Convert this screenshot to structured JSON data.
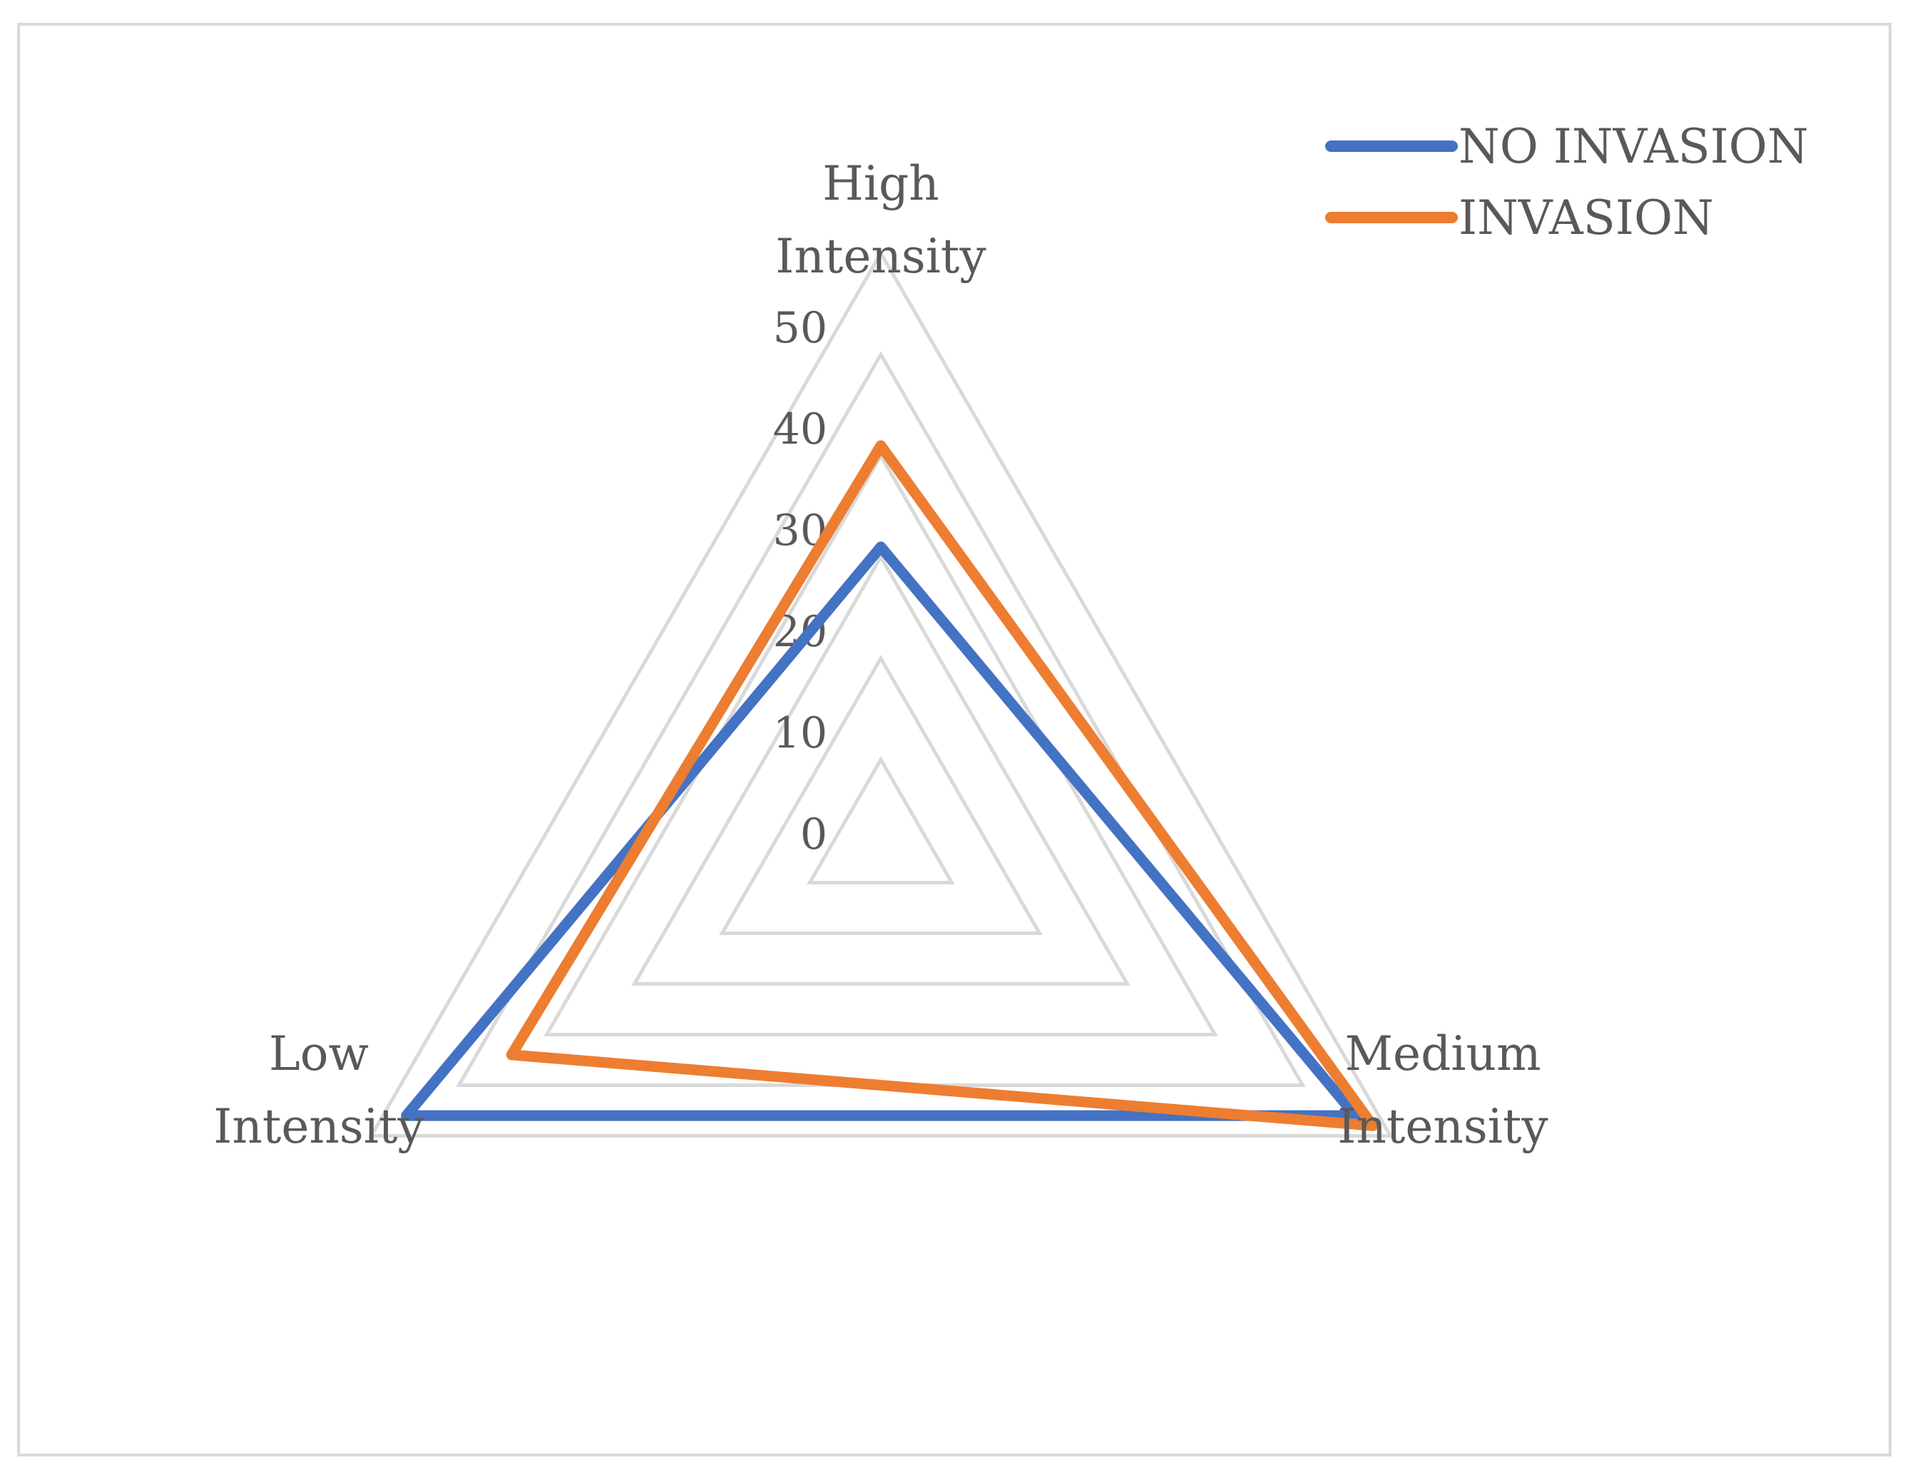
{
  "chart_data": {
    "type": "radar",
    "title": "",
    "axes": [
      "High Intensity",
      "Medium Intensity",
      "Low Intensity"
    ],
    "axis_labels": {
      "high": [
        "High",
        "Intensity"
      ],
      "medium": [
        "Medium",
        "Intensity"
      ],
      "low": [
        "Low",
        "Intensity"
      ]
    },
    "rlim": [
      0,
      50
    ],
    "ticks": [
      0,
      10,
      20,
      30,
      40,
      50
    ],
    "tick_labels": [
      "0",
      "10",
      "20",
      "30",
      "40",
      "50"
    ],
    "series": [
      {
        "name": "NO INVASION",
        "color": "#4472c4",
        "values": [
          21,
          46,
          46
        ]
      },
      {
        "name": "INVASION",
        "color": "#ed7d31",
        "values": [
          31,
          48,
          34
        ]
      }
    ],
    "grid_color": "#d9d9d9",
    "text_color": "#595959",
    "legend_position": "top-right"
  }
}
